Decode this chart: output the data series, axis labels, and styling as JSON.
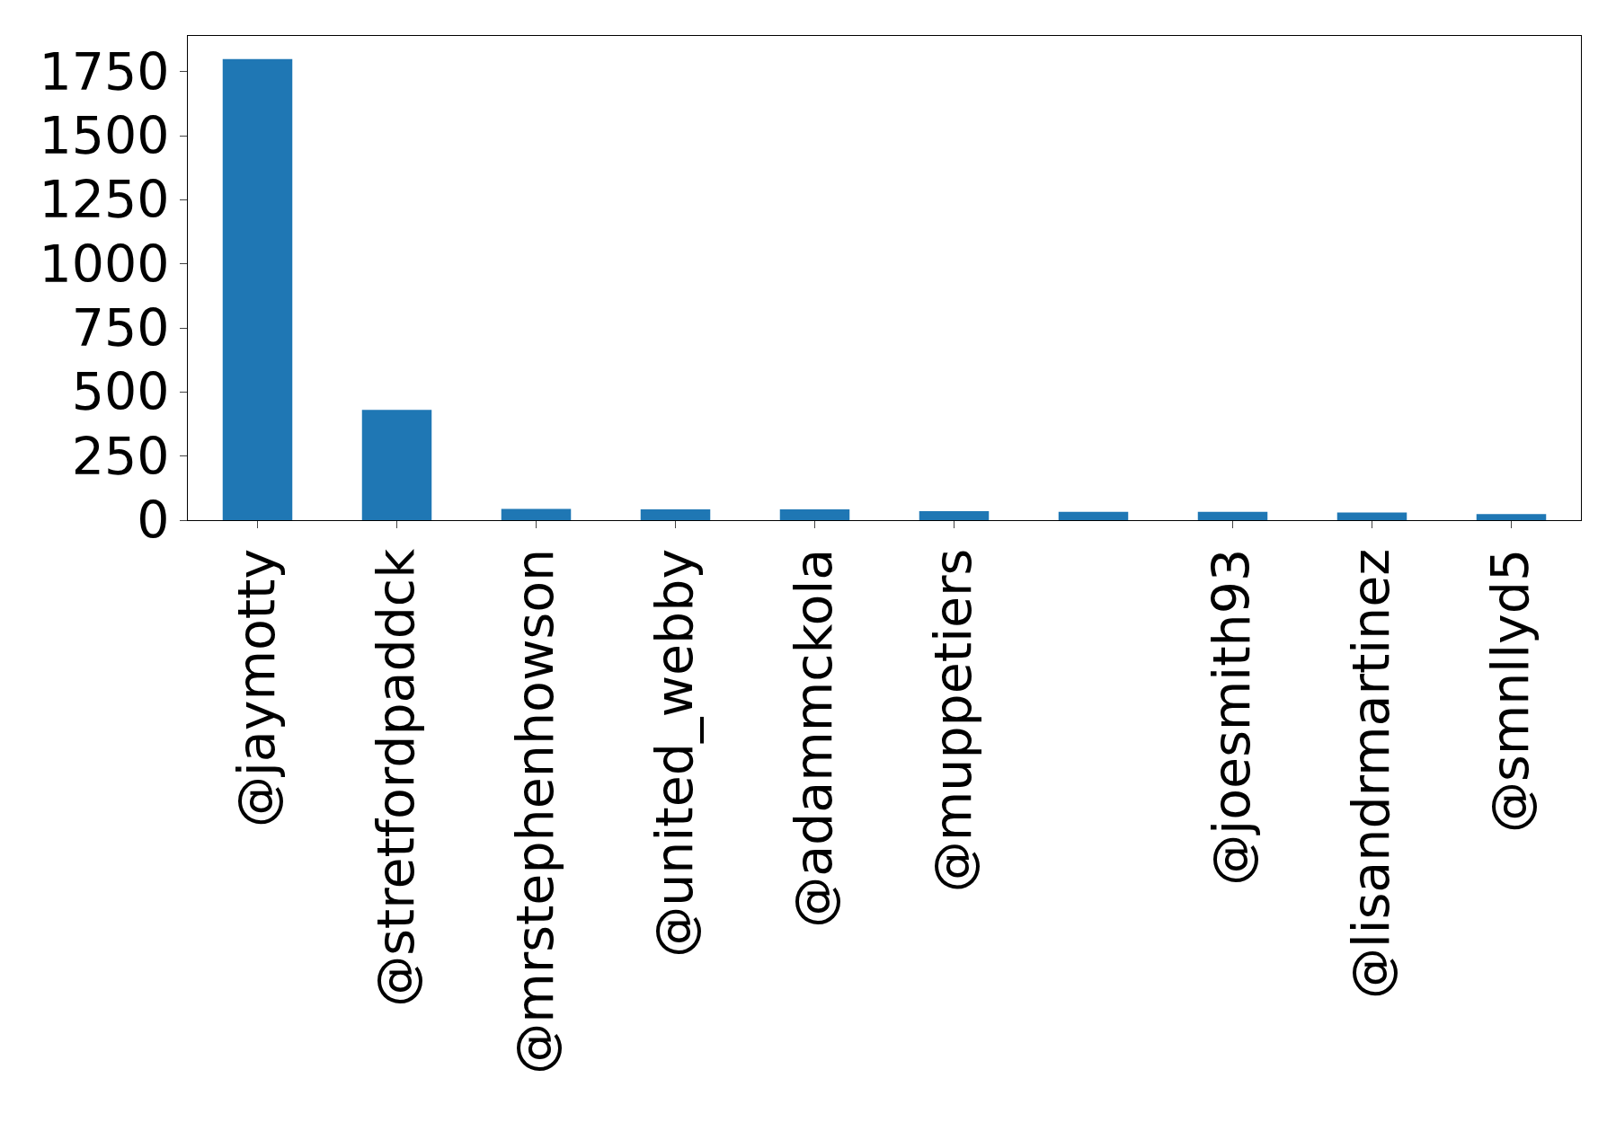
{
  "chart_data": {
    "type": "bar",
    "categories": [
      "@jaymotty",
      "@stretfordpaddck",
      "@mrstephenhowson",
      "@united_webby",
      "@adammckola",
      "@muppetiers",
      null,
      "@joesmith93",
      "@lisandrmartinez",
      "@smnllyd5"
    ],
    "values": [
      1800,
      430,
      44,
      42,
      42,
      35,
      32,
      32,
      30,
      24
    ],
    "color": "#1f77b4",
    "ylim": [
      0,
      1890
    ],
    "yticks": [
      0,
      250,
      500,
      750,
      1000,
      1250,
      1500,
      1750
    ]
  }
}
